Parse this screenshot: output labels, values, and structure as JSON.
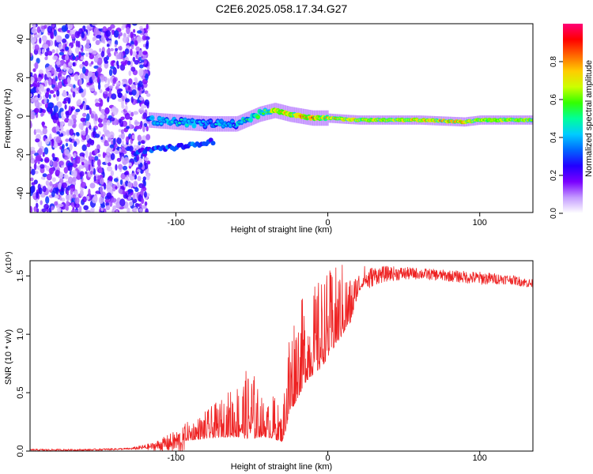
{
  "figure_title": "C2E6.2025.058.17.34.G27",
  "chart_data": [
    {
      "type": "heatmap",
      "xlabel": "Height of straight line (km)",
      "ylabel": "Frequency (Hz)",
      "xlim": [
        -196,
        135
      ],
      "ylim": [
        -50,
        48
      ],
      "xticks": [
        -100,
        0,
        100
      ],
      "yticks": [
        -40,
        -20,
        0,
        20,
        40
      ],
      "grid": false,
      "colorbar": {
        "label": "Normalized spectral amplitude",
        "range": [
          0,
          1
        ],
        "ticks": [
          0.0,
          0.2,
          0.4,
          0.6,
          0.8
        ],
        "colormap": [
          "#ffffff",
          "#c49bff",
          "#7a00ff",
          "#2200ff",
          "#0066ff",
          "#00ccff",
          "#00ff99",
          "#33ff00",
          "#ccff00",
          "#ffcc00",
          "#ff6600",
          "#ff0000",
          "#ff0077"
        ]
      },
      "ridge": {
        "x": [
          -118,
          -100,
          -80,
          -60,
          -45,
          -35,
          -25,
          -10,
          0,
          20,
          60,
          90,
          100,
          135
        ],
        "y": [
          -2,
          -3,
          -4,
          -4,
          1,
          3,
          1,
          -1,
          -1,
          -2,
          -2,
          -3,
          -2,
          -2
        ],
        "peak_amplitude": [
          0.45,
          0.5,
          0.45,
          0.5,
          0.65,
          0.8,
          0.85,
          0.9,
          0.85,
          0.8,
          0.8,
          0.9,
          0.75,
          0.75
        ]
      },
      "secondary_branch": {
        "x": [
          -128,
          -110,
          -90,
          -75
        ],
        "y": [
          -19,
          -17,
          -15,
          -13
        ],
        "peak_amplitude": [
          0.3,
          0.35,
          0.35,
          0.3
        ]
      },
      "noise_region": {
        "x_range": [
          -196,
          -118
        ],
        "y_range": [
          -50,
          48
        ],
        "amplitude": [
          0.05,
          0.3
        ]
      },
      "background_color": "#ffffff"
    },
    {
      "type": "line",
      "xlabel": "Height of straight line (km)",
      "ylabel": "SNR (10 * v/v)",
      "y_scale_label": "(x10⁴)",
      "xlim": [
        -196,
        135
      ],
      "ylim": [
        0,
        1.63
      ],
      "xticks": [
        -100,
        0,
        100
      ],
      "yticks": [
        0.0,
        0.5,
        1.0,
        1.5
      ],
      "ytick_labels": [
        "0.0",
        "0.5",
        "1.0",
        "1.5"
      ],
      "grid": false,
      "series_color": "#ee2222",
      "envelope": {
        "x": [
          -196,
          -160,
          -130,
          -115,
          -100,
          -85,
          -70,
          -60,
          -50,
          -45,
          -40,
          -35,
          -30,
          -26,
          -22,
          -18,
          -14,
          -10,
          -5,
          0,
          5,
          10,
          15,
          20,
          25,
          30,
          40,
          60,
          80,
          100,
          120,
          135
        ],
        "base": [
          0.01,
          0.01,
          0.02,
          0.04,
          0.08,
          0.1,
          0.12,
          0.12,
          0.1,
          0.12,
          0.12,
          0.1,
          0.08,
          0.25,
          0.4,
          0.5,
          0.6,
          0.65,
          0.7,
          0.8,
          0.9,
          1.0,
          1.1,
          1.35,
          1.45,
          1.5,
          1.52,
          1.52,
          1.5,
          1.48,
          1.47,
          1.43
        ],
        "peak": [
          0.02,
          0.02,
          0.03,
          0.08,
          0.2,
          0.3,
          0.45,
          0.6,
          0.75,
          0.5,
          0.4,
          0.5,
          0.3,
          1.1,
          1.25,
          1.3,
          1.35,
          1.4,
          1.5,
          1.55,
          1.58,
          1.63,
          1.5,
          1.55,
          1.6,
          1.6,
          1.6,
          1.58,
          1.56,
          1.55,
          1.52,
          1.48
        ]
      }
    }
  ]
}
